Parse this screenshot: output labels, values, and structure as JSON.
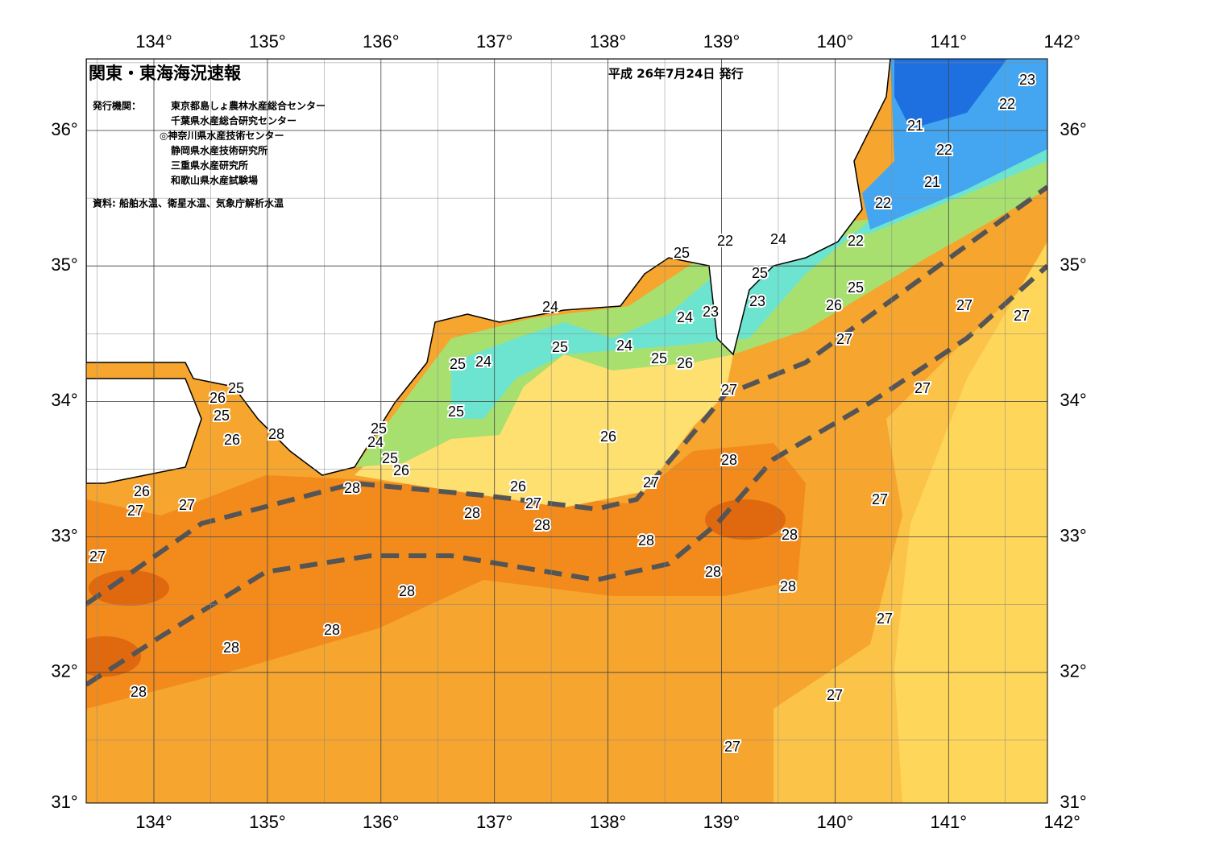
{
  "header": {
    "title": "関東・東海海況速報",
    "date": "平成 26年7月24日 発行",
    "publisher_label": "発行機関：",
    "publishers": [
      "東京都島しょ農林水産総合センター",
      "千葉県水産総合研究センター",
      "◎神奈川県水産技術センター",
      "静岡県水産技術研究所",
      "三重県水産研究所",
      "和歌山県水産試験場"
    ],
    "source": "資料: 船舶水温、衛星水温、気象庁解析水温"
  },
  "map": {
    "lon_ticks": [
      {
        "value": 134,
        "label": "134°"
      },
      {
        "value": 135,
        "label": "135°"
      },
      {
        "value": 136,
        "label": "136°"
      },
      {
        "value": 137,
        "label": "137°"
      },
      {
        "value": 138,
        "label": "138°"
      },
      {
        "value": 139,
        "label": "139°"
      },
      {
        "value": 140,
        "label": "140°"
      },
      {
        "value": 141,
        "label": "141°"
      },
      {
        "value": 142,
        "label": "142°"
      }
    ],
    "lat_ticks": [
      {
        "value": 36,
        "label": "36°"
      },
      {
        "value": 35,
        "label": "35°"
      },
      {
        "value": 34,
        "label": "34°"
      },
      {
        "value": 33,
        "label": "33°"
      },
      {
        "value": 32,
        "label": "32°"
      },
      {
        "value": 31,
        "label": "31°"
      }
    ],
    "contour_labels": [
      23,
      22,
      21,
      22,
      21,
      22,
      22,
      22,
      24,
      25,
      25,
      23,
      23,
      24,
      24,
      25,
      26,
      27,
      27,
      27,
      25,
      24,
      25,
      26,
      24,
      25,
      25,
      26,
      25,
      25,
      27,
      27,
      25,
      26,
      28,
      26,
      24,
      25,
      26,
      28,
      28,
      26,
      27,
      26,
      27,
      27,
      27,
      27,
      28,
      28,
      28,
      28,
      27,
      28,
      28,
      28,
      27,
      28,
      28,
      28,
      27,
      27
    ]
  }
}
